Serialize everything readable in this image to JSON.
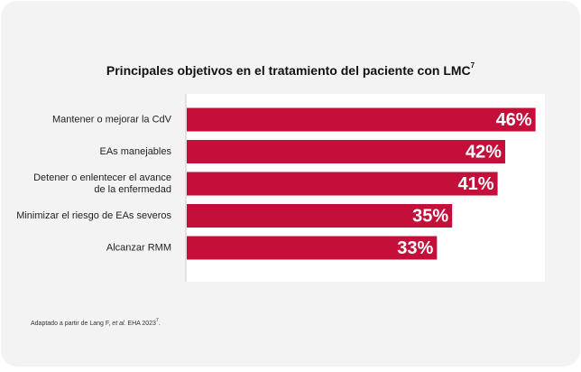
{
  "chart_data": {
    "type": "bar",
    "orientation": "horizontal",
    "title": "Principales objetivos en el tratamiento del paciente con LMC",
    "title_sup": "7",
    "categories": [
      "Mantener o mejorar la CdV",
      "EAs manejables",
      [
        "Detener o enlentecer el avance",
        "de la enfermedad"
      ],
      "Minimizar el riesgo de EAs severos",
      "Alcanzar RMM"
    ],
    "values": [
      46,
      42,
      41,
      35,
      33
    ],
    "value_labels": [
      "46%",
      "42%",
      "41%",
      "35%",
      "33%"
    ],
    "color": "#c40f3a",
    "xlim": [
      0,
      47
    ]
  },
  "footnote": {
    "before": "Adaptado a partir de Lang F, ",
    "italic": "et al.",
    "after": " EHA 2023",
    "sup": "7",
    "end": "."
  }
}
